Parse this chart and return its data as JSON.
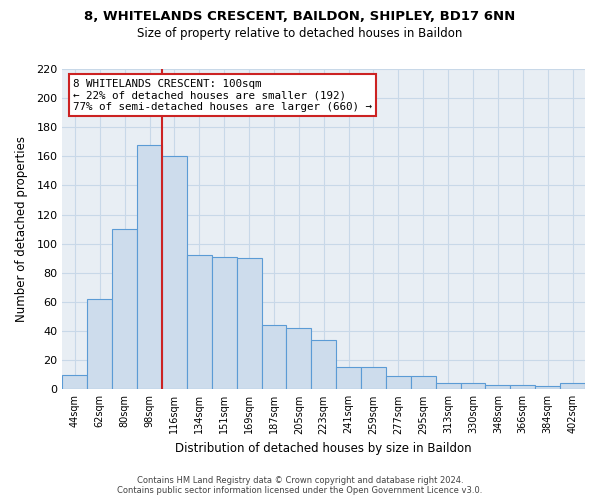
{
  "title": "8, WHITELANDS CRESCENT, BAILDON, SHIPLEY, BD17 6NN",
  "subtitle": "Size of property relative to detached houses in Baildon",
  "xlabel": "Distribution of detached houses by size in Baildon",
  "ylabel": "Number of detached properties",
  "bar_labels": [
    "44sqm",
    "62sqm",
    "80sqm",
    "98sqm",
    "116sqm",
    "134sqm",
    "151sqm",
    "169sqm",
    "187sqm",
    "205sqm",
    "223sqm",
    "241sqm",
    "259sqm",
    "277sqm",
    "295sqm",
    "313sqm",
    "330sqm",
    "348sqm",
    "366sqm",
    "384sqm",
    "402sqm"
  ],
  "bar_values": [
    10,
    62,
    110,
    168,
    160,
    92,
    91,
    90,
    44,
    42,
    34,
    15,
    15,
    9,
    9,
    4,
    4,
    3,
    3,
    2,
    4
  ],
  "bar_color": "#cddcec",
  "bar_edge_color": "#5b9bd5",
  "vertical_line_x": 3.5,
  "vertical_line_color": "#cc2222",
  "ylim": [
    0,
    220
  ],
  "yticks": [
    0,
    20,
    40,
    60,
    80,
    100,
    120,
    140,
    160,
    180,
    200,
    220
  ],
  "annotation_box_text": "8 WHITELANDS CRESCENT: 100sqm\n← 22% of detached houses are smaller (192)\n77% of semi-detached houses are larger (660) →",
  "footer_line1": "Contains HM Land Registry data © Crown copyright and database right 2024.",
  "footer_line2": "Contains public sector information licensed under the Open Government Licence v3.0.",
  "grid_color": "#c8d8e8",
  "background_color": "#e8eef4"
}
